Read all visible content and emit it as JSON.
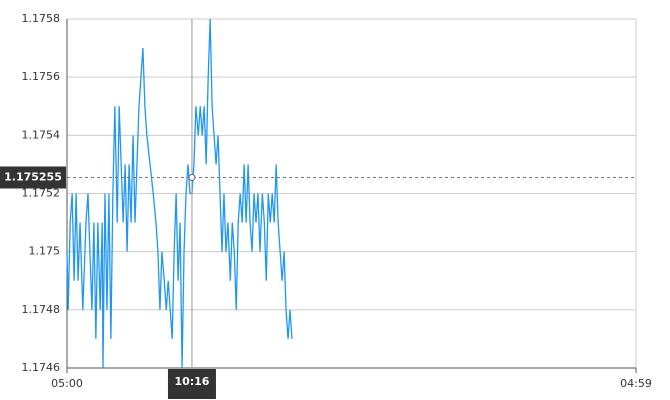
{
  "chart_data": {
    "type": "line",
    "x": [
      0,
      3,
      8,
      13,
      18,
      23,
      28,
      33,
      40,
      48,
      53,
      58,
      63,
      68,
      73,
      78,
      84,
      89,
      91,
      96,
      101,
      106,
      111,
      116,
      121,
      127,
      132,
      137,
      142,
      147,
      152,
      157,
      162,
      167,
      172,
      177,
      182,
      187,
      192,
      197,
      202,
      210,
      218,
      225,
      230,
      235,
      240,
      246,
      251,
      256,
      261,
      266,
      271,
      276,
      281,
      286,
      291,
      296,
      301,
      306,
      311,
      316,
      321,
      326,
      332,
      337,
      342,
      347,
      352,
      357,
      362,
      367,
      372,
      377,
      382,
      387,
      392,
      397,
      402,
      407,
      413,
      418,
      423,
      428,
      433,
      438,
      443,
      448,
      453,
      458,
      463,
      468,
      473,
      478,
      483,
      488,
      494,
      499,
      504,
      509,
      514,
      519,
      524,
      529,
      534,
      539,
      544,
      549,
      554,
      559,
      564,
      569
    ],
    "series": [
      {
        "color": "#2196f3",
        "values": [
          1.175,
          1.1748,
          1.1751,
          1.1752,
          1.1749,
          1.1752,
          1.1749,
          1.1751,
          1.1748,
          1.1751,
          1.1752,
          1.175,
          1.1748,
          1.1751,
          1.1747,
          1.1751,
          1.1748,
          1.1751,
          1.1746,
          1.1752,
          1.1748,
          1.1752,
          1.1747,
          1.1752,
          1.1755,
          1.1751,
          1.1755,
          1.1753,
          1.1751,
          1.1753,
          1.175,
          1.1753,
          1.1751,
          1.1754,
          1.1751,
          1.1753,
          1.1755,
          1.1756,
          1.1757,
          1.1755,
          1.1754,
          1.1753,
          1.1752,
          1.1751,
          1.175,
          1.1748,
          1.175,
          1.1749,
          1.1748,
          1.1749,
          1.1748,
          1.1747,
          1.175,
          1.1752,
          1.1749,
          1.1751,
          1.1746,
          1.175,
          1.1752,
          1.1753,
          1.1752,
          1.1752,
          1.1753,
          1.1755,
          1.1754,
          1.1755,
          1.1754,
          1.1755,
          1.1753,
          1.1756,
          1.1758,
          1.1755,
          1.1754,
          1.1753,
          1.1754,
          1.1752,
          1.175,
          1.1752,
          1.175,
          1.1751,
          1.1749,
          1.1751,
          1.175,
          1.1748,
          1.1751,
          1.1752,
          1.1751,
          1.1753,
          1.1751,
          1.1753,
          1.1751,
          1.175,
          1.1752,
          1.1751,
          1.1752,
          1.175,
          1.1752,
          1.1751,
          1.1749,
          1.1752,
          1.1751,
          1.1752,
          1.1751,
          1.1753,
          1.1751,
          1.175,
          1.1749,
          1.175,
          1.1748,
          1.1747,
          1.1748,
          1.1747
        ]
      }
    ],
    "xlim": [
      0,
      1439
    ],
    "xticks": [
      {
        "value": 0,
        "label": "05:00"
      },
      {
        "value": 1439,
        "label": "04:59"
      }
    ],
    "ylim": [
      1.1746,
      1.1758
    ],
    "yticks": [
      1.1746,
      1.1748,
      1.175,
      1.1752,
      1.1754,
      1.1756,
      1.1758
    ],
    "grid": true,
    "crosshair": {
      "x": {
        "value": 316,
        "label": "10:16"
      },
      "y": 1.175255
    }
  }
}
